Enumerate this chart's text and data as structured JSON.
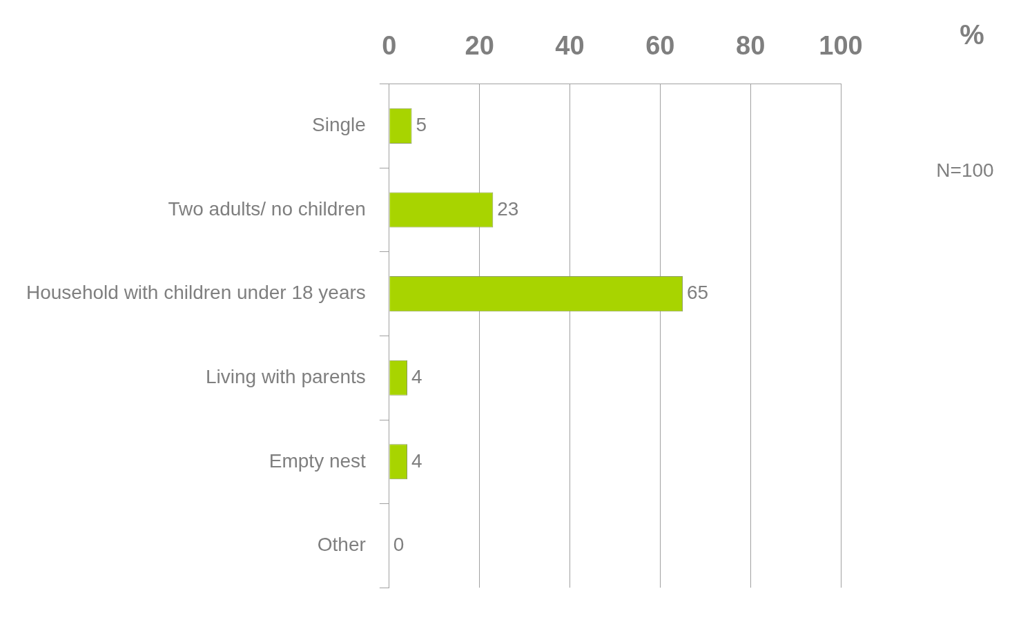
{
  "chart_data": {
    "type": "bar",
    "orientation": "horizontal",
    "xlabel": "%",
    "categories": [
      "Single",
      "Two adults/ no children",
      "Household with children under 18 years",
      "Living with parents",
      "Empty nest",
      "Other"
    ],
    "values": [
      5,
      23,
      65,
      4,
      4,
      0
    ],
    "color": "#a8d400",
    "xlim": [
      0,
      100
    ],
    "xticks": [
      0,
      20,
      40,
      60,
      80,
      100
    ],
    "grid": "x",
    "data_labels": true,
    "legend": false,
    "annotations": [
      "N=100"
    ]
  }
}
